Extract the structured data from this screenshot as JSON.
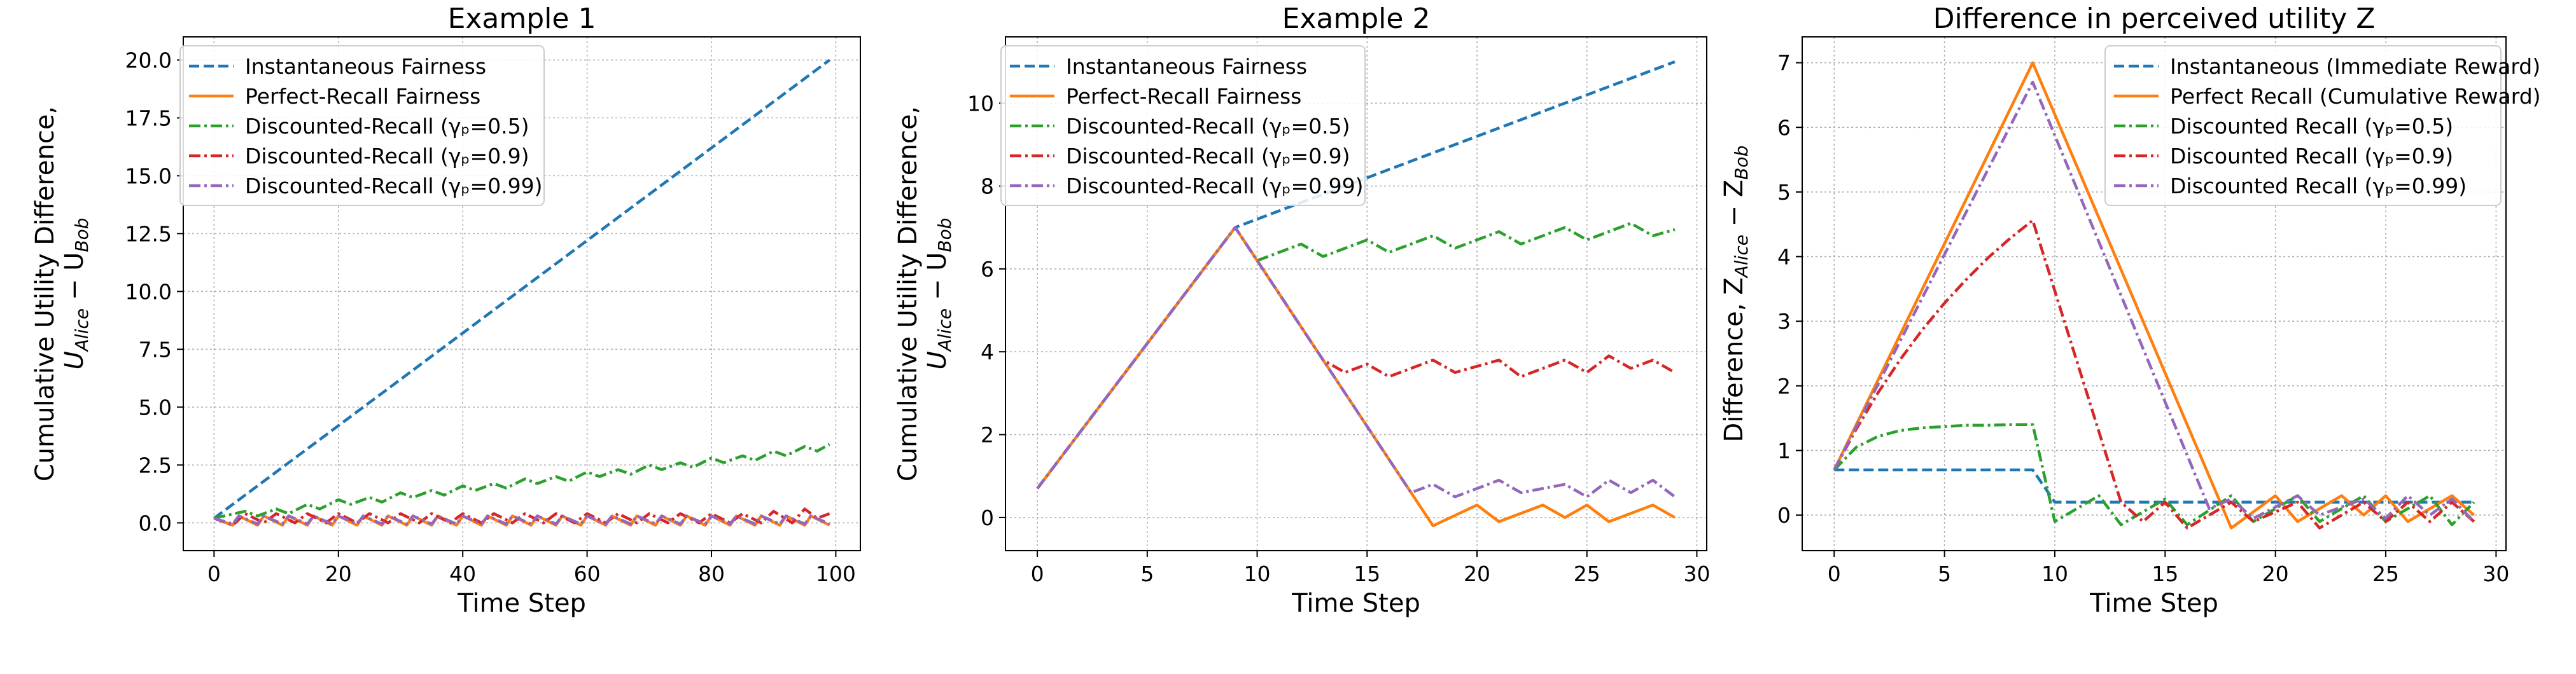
{
  "chart_data": [
    {
      "type": "line",
      "title": "Example 1",
      "xlabel": "Time Step",
      "ylabel_line1": "Cumulative Utility Difference,",
      "ylabel_line2": "U",
      "ylabel_sub_a": "Alice",
      "ylabel_minus": " − U",
      "ylabel_sub_b": "Bob",
      "xlim": [
        -4.95,
        103.95
      ],
      "ylim": [
        -1.2,
        21.0
      ],
      "xticks": [
        0,
        20,
        40,
        60,
        80,
        100
      ],
      "xtick_labels": [
        "0",
        "20",
        "40",
        "60",
        "80",
        "100"
      ],
      "yticks": [
        0,
        2.5,
        5,
        7.5,
        10,
        12.5,
        15,
        17.5,
        20
      ],
      "ytick_labels": [
        "0.0",
        "2.5",
        "5.0",
        "7.5",
        "10.0",
        "12.5",
        "15.0",
        "17.5",
        "20.0"
      ],
      "grid": true,
      "legend_position": "upper-left",
      "series": [
        {
          "name": "Instantaneous Fairness",
          "color": "#1f77b4",
          "dash": "dashed",
          "x": [
            0,
            99
          ],
          "y": [
            0.2,
            20.0
          ]
        },
        {
          "name": "Perfect-Recall Fairness",
          "color": "#ff7f0e",
          "dash": "solid",
          "x": [
            0,
            3,
            4,
            7,
            8,
            11,
            12,
            15,
            16,
            19,
            20,
            23,
            24,
            27,
            28,
            31,
            32,
            35,
            36,
            39,
            40,
            43,
            44,
            47,
            48,
            51,
            52,
            55,
            56,
            59,
            60,
            63,
            64,
            67,
            68,
            71,
            72,
            75,
            76,
            79,
            80,
            83,
            84,
            87,
            88,
            91,
            92,
            95,
            96,
            99
          ],
          "y": [
            0.2,
            -0.1,
            0.3,
            -0.1,
            0.3,
            -0.1,
            0.3,
            -0.1,
            0.3,
            -0.1,
            0.3,
            -0.1,
            0.3,
            -0.1,
            0.3,
            -0.1,
            0.3,
            -0.1,
            0.3,
            -0.1,
            0.3,
            -0.1,
            0.3,
            -0.1,
            0.3,
            -0.1,
            0.3,
            -0.1,
            0.3,
            -0.1,
            0.3,
            -0.1,
            0.3,
            -0.1,
            0.3,
            -0.1,
            0.3,
            -0.1,
            0.3,
            -0.1,
            0.3,
            -0.1,
            0.3,
            -0.1,
            0.3,
            -0.1,
            0.3,
            -0.1,
            0.3,
            -0.1
          ]
        },
        {
          "name": "Discounted-Recall (γₚ=0.5)",
          "color": "#2ca02c",
          "dash": "dashdot",
          "x": [
            0,
            5,
            7,
            10,
            12,
            15,
            17,
            20,
            22,
            25,
            27,
            30,
            32,
            35,
            37,
            40,
            42,
            45,
            47,
            50,
            52,
            55,
            57,
            60,
            62,
            65,
            67,
            70,
            72,
            75,
            77,
            80,
            82,
            85,
            87,
            90,
            92,
            95,
            97,
            99
          ],
          "y": [
            0.2,
            0.5,
            0.3,
            0.6,
            0.4,
            0.8,
            0.6,
            1.0,
            0.8,
            1.1,
            0.9,
            1.3,
            1.1,
            1.4,
            1.2,
            1.6,
            1.4,
            1.7,
            1.5,
            1.9,
            1.7,
            2.0,
            1.8,
            2.2,
            2.0,
            2.3,
            2.1,
            2.5,
            2.3,
            2.6,
            2.4,
            2.8,
            2.6,
            2.9,
            2.7,
            3.1,
            2.9,
            3.3,
            3.1,
            3.4
          ]
        },
        {
          "name": "Discounted-Recall (γₚ=0.9)",
          "color": "#d62728",
          "dash": "dashdot",
          "x": [
            0,
            3,
            5,
            8,
            10,
            13,
            15,
            18,
            20,
            23,
            25,
            28,
            30,
            33,
            35,
            38,
            40,
            43,
            45,
            48,
            50,
            53,
            55,
            58,
            60,
            63,
            65,
            68,
            70,
            73,
            75,
            78,
            80,
            83,
            85,
            88,
            90,
            93,
            95,
            97,
            99
          ],
          "y": [
            0.2,
            -0.1,
            0.4,
            0.0,
            0.4,
            0.0,
            0.4,
            0.0,
            0.4,
            0.0,
            0.4,
            0.0,
            0.4,
            0.0,
            0.4,
            0.0,
            0.4,
            0.0,
            0.4,
            0.0,
            0.4,
            0.0,
            0.4,
            0.0,
            0.4,
            0.0,
            0.4,
            0.0,
            0.4,
            0.0,
            0.4,
            0.0,
            0.4,
            0.0,
            0.4,
            0.0,
            0.5,
            0.0,
            0.6,
            0.2,
            0.4
          ]
        },
        {
          "name": "Discounted-Recall (γₚ=0.99)",
          "color": "#9467bd",
          "dash": "dashdot",
          "x": [
            0,
            3,
            4,
            7,
            8,
            11,
            12,
            15,
            16,
            19,
            20,
            23,
            24,
            27,
            28,
            31,
            32,
            35,
            36,
            39,
            40,
            43,
            44,
            47,
            48,
            51,
            52,
            55,
            56,
            59,
            60,
            63,
            64,
            67,
            68,
            71,
            72,
            75,
            76,
            79,
            80,
            83,
            84,
            87,
            88,
            91,
            92,
            95,
            96,
            99
          ],
          "y": [
            0.2,
            -0.05,
            0.3,
            -0.05,
            0.3,
            -0.05,
            0.3,
            -0.05,
            0.3,
            -0.05,
            0.3,
            -0.05,
            0.3,
            -0.05,
            0.3,
            -0.05,
            0.3,
            -0.05,
            0.3,
            -0.05,
            0.3,
            -0.05,
            0.3,
            -0.05,
            0.3,
            -0.05,
            0.3,
            -0.05,
            0.3,
            -0.05,
            0.3,
            -0.05,
            0.3,
            -0.05,
            0.3,
            -0.05,
            0.3,
            -0.05,
            0.3,
            -0.05,
            0.3,
            -0.05,
            0.3,
            -0.05,
            0.3,
            -0.05,
            0.3,
            -0.05,
            0.3,
            -0.05
          ]
        }
      ]
    },
    {
      "type": "line",
      "title": "Example 2",
      "xlabel": "Time Step",
      "ylabel_line1": "Cumulative Utility Difference,",
      "ylabel_line2": "U",
      "ylabel_sub_a": "Alice",
      "ylabel_minus": " − U",
      "ylabel_sub_b": "Bob",
      "xlim": [
        -1.45,
        30.45
      ],
      "ylim": [
        -0.8,
        11.6
      ],
      "xticks": [
        0,
        5,
        10,
        15,
        20,
        25,
        30
      ],
      "xtick_labels": [
        "0",
        "5",
        "10",
        "15",
        "20",
        "25",
        "30"
      ],
      "yticks": [
        0,
        2,
        4,
        6,
        8,
        10
      ],
      "ytick_labels": [
        "0",
        "2",
        "4",
        "6",
        "8",
        "10"
      ],
      "grid": true,
      "legend_position": "upper-left",
      "series": [
        {
          "name": "Instantaneous Fairness",
          "color": "#1f77b4",
          "dash": "dashed",
          "x": [
            0,
            9,
            29
          ],
          "y": [
            0.7,
            7.0,
            11.0
          ]
        },
        {
          "name": "Perfect-Recall Fairness",
          "color": "#ff7f0e",
          "dash": "solid",
          "x": [
            0,
            9,
            18,
            20,
            21,
            23,
            24,
            25,
            26,
            28,
            29
          ],
          "y": [
            0.7,
            7.0,
            -0.2,
            0.3,
            -0.1,
            0.3,
            0.0,
            0.3,
            -0.1,
            0.3,
            0.0
          ]
        },
        {
          "name": "Discounted-Recall (γₚ=0.5)",
          "color": "#2ca02c",
          "dash": "dashdot",
          "x": [
            0,
            9,
            10,
            12,
            13,
            15,
            16,
            18,
            19,
            21,
            22,
            24,
            25,
            27,
            28,
            29
          ],
          "y": [
            0.7,
            7.0,
            6.2,
            6.6,
            6.3,
            6.7,
            6.4,
            6.8,
            6.5,
            6.9,
            6.6,
            7.0,
            6.7,
            7.1,
            6.8,
            6.95
          ]
        },
        {
          "name": "Discounted-Recall (γₚ=0.9)",
          "color": "#d62728",
          "dash": "dashdot",
          "x": [
            0,
            9,
            13,
            14,
            15,
            16,
            18,
            19,
            21,
            22,
            24,
            25,
            26,
            27,
            28,
            29
          ],
          "y": [
            0.7,
            7.0,
            3.8,
            3.5,
            3.7,
            3.4,
            3.8,
            3.5,
            3.8,
            3.4,
            3.8,
            3.5,
            3.9,
            3.6,
            3.8,
            3.5
          ]
        },
        {
          "name": "Discounted-Recall (γₚ=0.99)",
          "color": "#9467bd",
          "dash": "dashdot",
          "x": [
            0,
            9,
            17,
            18,
            19,
            21,
            22,
            24,
            25,
            26,
            27,
            28,
            29
          ],
          "y": [
            0.7,
            7.0,
            0.6,
            0.8,
            0.5,
            0.9,
            0.6,
            0.8,
            0.5,
            0.9,
            0.6,
            0.9,
            0.5
          ]
        }
      ]
    },
    {
      "type": "line",
      "title": "Difference in perceived utility Z",
      "xlabel": "Time Step",
      "ylabel_line1": "",
      "ylabel_line2": "Difference, Z",
      "ylabel_sub_a": "Alice",
      "ylabel_minus": " − Z",
      "ylabel_sub_b": "Bob",
      "xlim": [
        -1.45,
        30.45
      ],
      "ylim": [
        -0.55,
        7.4
      ],
      "xticks": [
        0,
        5,
        10,
        15,
        20,
        25,
        30
      ],
      "xtick_labels": [
        "0",
        "5",
        "10",
        "15",
        "20",
        "25",
        "30"
      ],
      "yticks": [
        0,
        1,
        2,
        3,
        4,
        5,
        6,
        7
      ],
      "ytick_labels": [
        "0",
        "1",
        "2",
        "3",
        "4",
        "5",
        "6",
        "7"
      ],
      "grid": true,
      "legend_position": "upper-right",
      "series": [
        {
          "name": "Instantaneous (Immediate Reward)",
          "color": "#1f77b4",
          "dash": "dashed",
          "x": [
            0,
            9,
            10,
            29
          ],
          "y": [
            0.7,
            0.7,
            0.2,
            0.2
          ]
        },
        {
          "name": "Perfect Recall (Cumulative Reward)",
          "color": "#ff7f0e",
          "dash": "solid",
          "x": [
            0,
            9,
            18,
            20,
            21,
            23,
            24,
            25,
            26,
            28,
            29
          ],
          "y": [
            0.7,
            7.0,
            -0.2,
            0.3,
            -0.1,
            0.3,
            0.0,
            0.3,
            -0.1,
            0.3,
            0.0
          ]
        },
        {
          "name": "Discounted Recall (γₚ=0.5)",
          "color": "#2ca02c",
          "dash": "dashdot",
          "x": [
            0,
            1,
            2,
            3,
            4,
            5,
            6,
            7,
            8,
            9,
            10,
            12,
            13,
            15,
            16,
            18,
            19,
            21,
            22,
            24,
            25,
            27,
            28,
            29
          ],
          "y": [
            0.7,
            1.05,
            1.22,
            1.31,
            1.35,
            1.37,
            1.39,
            1.39,
            1.4,
            1.4,
            -0.1,
            0.3,
            -0.15,
            0.25,
            -0.15,
            0.3,
            -0.1,
            0.3,
            -0.1,
            0.3,
            -0.1,
            0.3,
            -0.15,
            0.2
          ]
        },
        {
          "name": "Discounted Recall (γₚ=0.9)",
          "color": "#d62728",
          "dash": "dashdot",
          "x": [
            0,
            1,
            2,
            3,
            4,
            5,
            6,
            7,
            8,
            9,
            13,
            14,
            15,
            16,
            18,
            19,
            21,
            22,
            24,
            25,
            26,
            27,
            28,
            29
          ],
          "y": [
            0.7,
            1.33,
            1.9,
            2.41,
            2.87,
            3.28,
            3.65,
            3.99,
            4.29,
            4.56,
            0.2,
            -0.1,
            0.2,
            -0.2,
            0.2,
            -0.1,
            0.2,
            -0.2,
            0.2,
            -0.1,
            0.2,
            -0.1,
            0.2,
            -0.1
          ]
        },
        {
          "name": "Discounted Recall (γₚ=0.99)",
          "color": "#9467bd",
          "dash": "dashdot",
          "x": [
            0,
            9,
            17,
            18,
            19,
            21,
            22,
            24,
            25,
            26,
            27,
            28,
            29
          ],
          "y": [
            0.7,
            6.7,
            0.1,
            0.25,
            -0.05,
            0.3,
            0.0,
            0.25,
            -0.05,
            0.3,
            0.0,
            0.25,
            -0.1
          ]
        }
      ]
    }
  ]
}
